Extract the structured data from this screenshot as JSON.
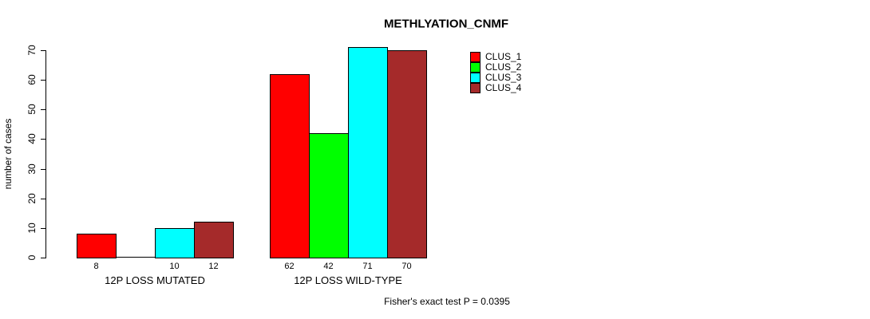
{
  "chart_data": {
    "type": "bar",
    "title": "METHLYATION_CNMF",
    "ylabel": "number of cases",
    "xlabel": "",
    "footer": "Fisher's exact test P = 0.0395",
    "series": [
      {
        "name": "CLUS_1",
        "color": "#FF0000"
      },
      {
        "name": "CLUS_2",
        "color": "#00FF00"
      },
      {
        "name": "CLUS_3",
        "color": "#00FFFF"
      },
      {
        "name": "CLUS_4",
        "color": "#A52A2A"
      }
    ],
    "categories": [
      "12P LOSS MUTATED",
      "12P LOSS WILD-TYPE"
    ],
    "groups": [
      {
        "label": "12P LOSS MUTATED",
        "values": [
          8,
          0,
          10,
          12
        ],
        "bar_labels": [
          "8",
          "",
          "10",
          "12"
        ]
      },
      {
        "label": "12P LOSS WILD-TYPE",
        "values": [
          62,
          42,
          71,
          70
        ],
        "bar_labels": [
          "62",
          "42",
          "71",
          "70"
        ]
      }
    ],
    "yticks": [
      0,
      10,
      20,
      30,
      40,
      50,
      60,
      70
    ],
    "ylim": [
      0,
      70
    ],
    "grid": false,
    "legend_position": "top-right-inside",
    "axis_color": "#000000",
    "background_color": "#FFFFFF"
  }
}
